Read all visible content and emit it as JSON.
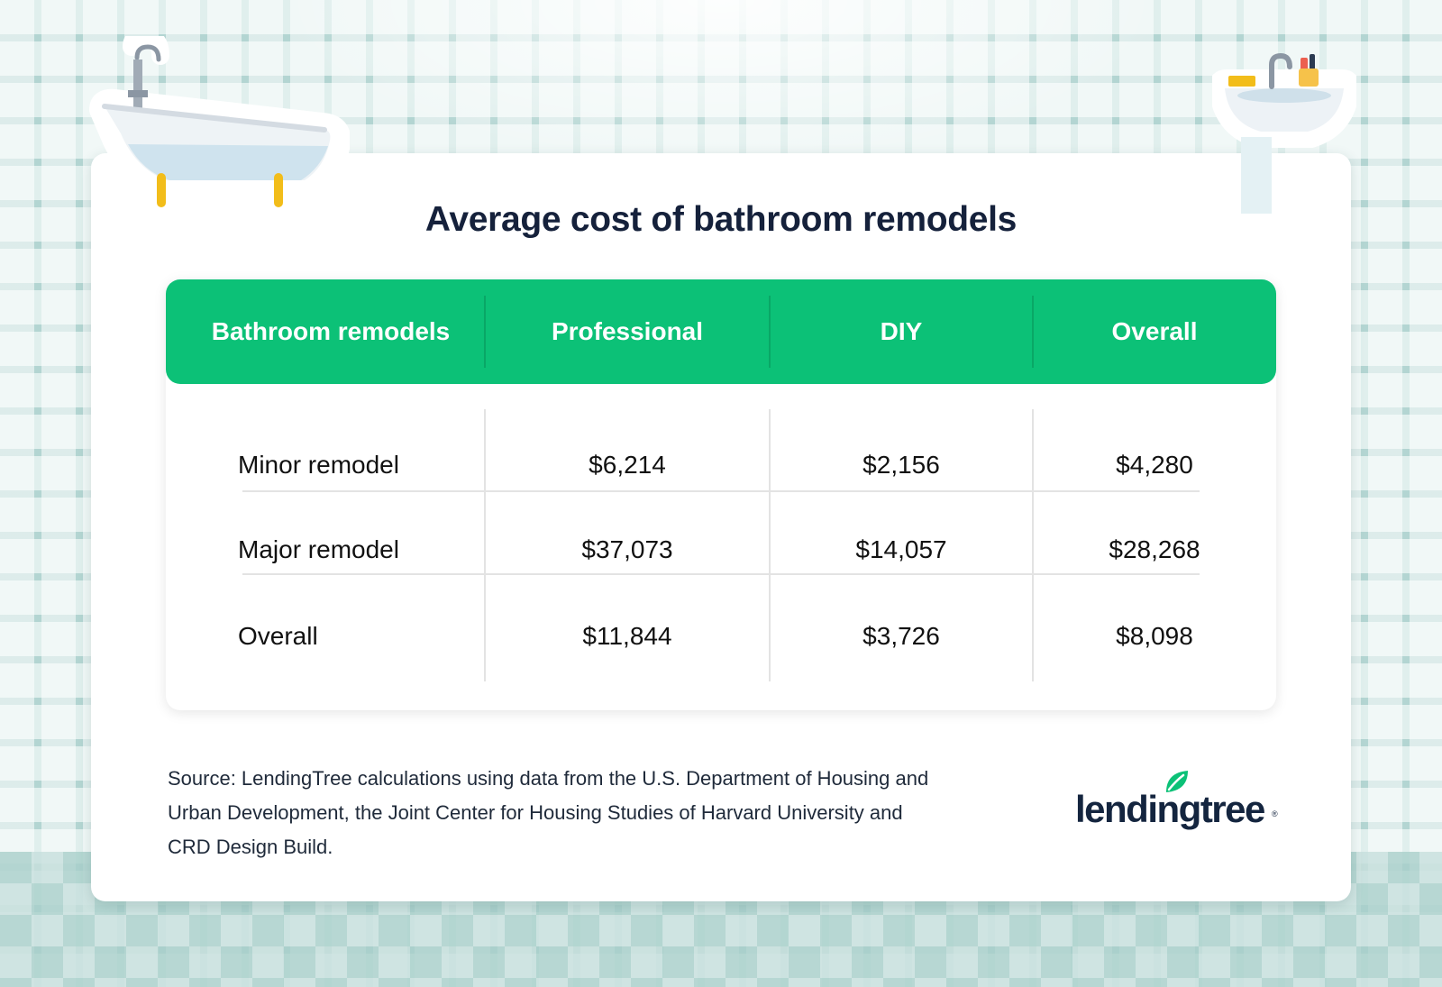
{
  "title": "Average cost of bathroom remodels",
  "chart_data": {
    "type": "table",
    "columns": [
      "Bathroom remodels",
      "Professional",
      "DIY",
      "Overall"
    ],
    "rows": [
      {
        "label": "Minor remodel",
        "cells": [
          "$6,214",
          "$2,156",
          "$4,280"
        ]
      },
      {
        "label": "Major remodel",
        "cells": [
          "$37,073",
          "$14,057",
          "$28,268"
        ]
      },
      {
        "label": "Overall",
        "cells": [
          "$11,844",
          "$3,726",
          "$8,098"
        ]
      }
    ]
  },
  "source": {
    "line1": "Source: LendingTree calculations using data from the U.S. Department of Housing and",
    "line2": "Urban Development, the Joint Center for Housing Studies of Harvard University and",
    "line3": "CRD Design Build."
  },
  "brand": {
    "name": "lendingtree",
    "reg_mark": "®",
    "accent": "#0cc177",
    "navy": "#15213b"
  },
  "icons": {
    "tub": "bathtub-icon",
    "sink": "sink-icon",
    "leaf": "leaf-icon"
  }
}
